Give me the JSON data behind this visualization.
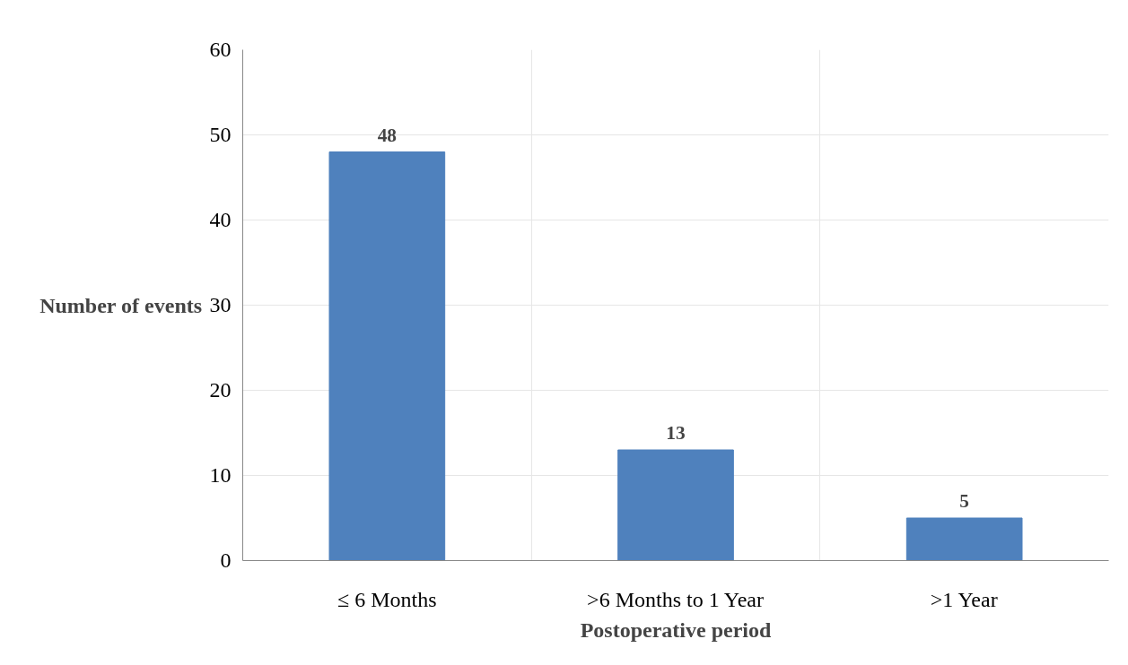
{
  "chart_data": {
    "type": "bar",
    "xlabel": "Postoperative period",
    "ylabel": "Number of events",
    "categories": [
      "≤ 6 Months",
      ">6 Months to 1 Year",
      ">1 Year"
    ],
    "values": [
      48,
      13,
      5
    ],
    "color": "#4f81bd",
    "ylim": [
      0,
      60
    ],
    "yticks": [
      0,
      10,
      20,
      30,
      40,
      50,
      60
    ],
    "grid": true,
    "data_labels": true
  }
}
